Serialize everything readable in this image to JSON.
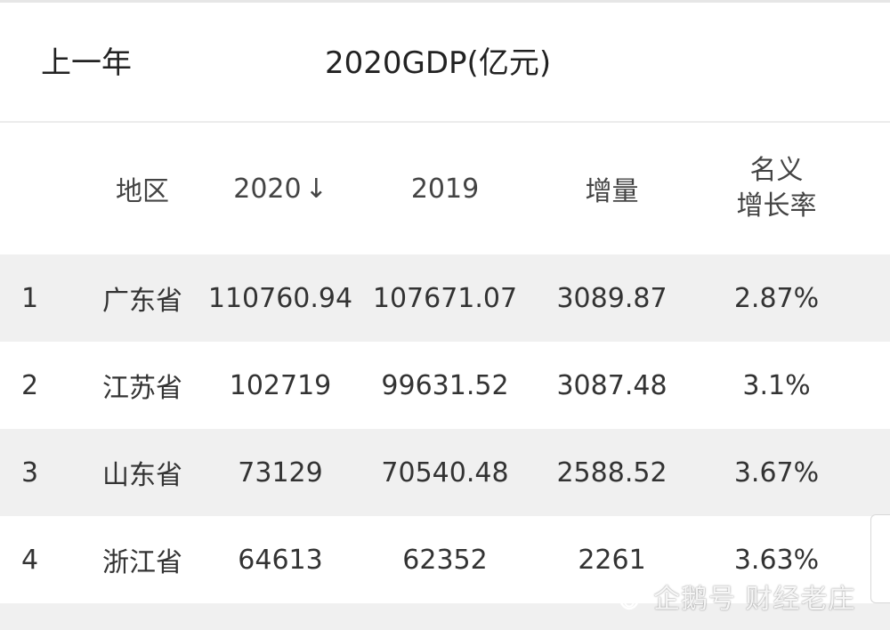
{
  "topbar": {
    "prev_year_label": "上一年",
    "title": "2020GDP(亿元)"
  },
  "table": {
    "headers": {
      "rank": "",
      "region": "地区",
      "gdp_2020": "2020",
      "sort_arrow": "↓",
      "gdp_2019": "2019",
      "increase": "增量",
      "rate_line1": "名义",
      "rate_line2": "增长率"
    },
    "rows": [
      {
        "rank": "1",
        "region": "广东省",
        "gdp_2020": "110760.94",
        "gdp_2019": "107671.07",
        "increase": "3089.87",
        "rate": "2.87%"
      },
      {
        "rank": "2",
        "region": "江苏省",
        "gdp_2020": "102719",
        "gdp_2019": "99631.52",
        "increase": "3087.48",
        "rate": "3.1%"
      },
      {
        "rank": "3",
        "region": "山东省",
        "gdp_2020": "73129",
        "gdp_2019": "70540.48",
        "increase": "2588.52",
        "rate": "3.67%"
      },
      {
        "rank": "4",
        "region": "浙江省",
        "gdp_2020": "64613",
        "gdp_2019": "62352",
        "increase": "2261",
        "rate": "3.63%"
      }
    ]
  },
  "watermark": {
    "text": "企鹅号 财经老庄",
    "icon": "penguin-icon"
  },
  "colors": {
    "shaded_row": "#f0f0f0",
    "text": "#333333"
  }
}
